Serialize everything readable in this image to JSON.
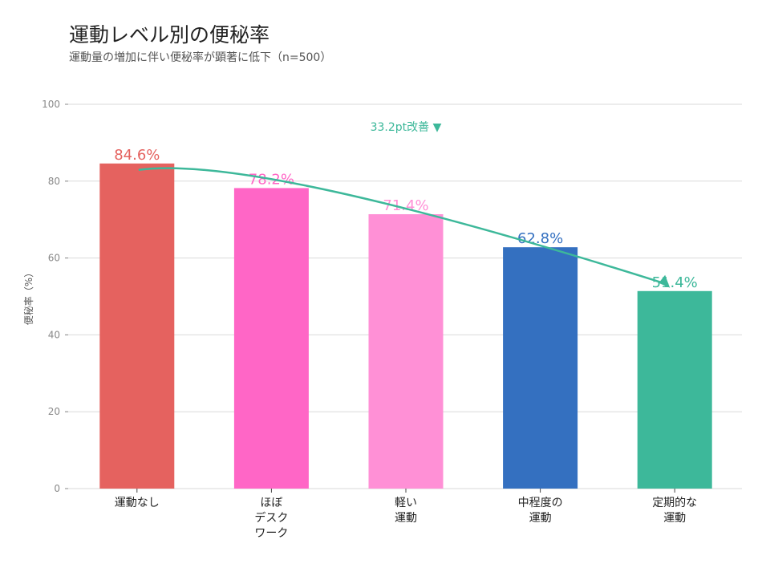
{
  "chart_data": {
    "type": "bar",
    "title": "運動レベル別の便秘率",
    "subtitle": "運動量の増加に伴い便秘率が顕著に低下（n=500）",
    "xlabel": "",
    "ylabel": "便秘率（%）",
    "ylim": [
      0,
      100
    ],
    "yticks": [
      0,
      20,
      40,
      60,
      80,
      100
    ],
    "grid": true,
    "categories": [
      [
        "運動なし"
      ],
      [
        "ほぼ",
        "デスク",
        "ワーク"
      ],
      [
        "軽い",
        "運動"
      ],
      [
        "中程度の",
        "運動"
      ],
      [
        "定期的な",
        "運動"
      ]
    ],
    "values": [
      84.6,
      78.2,
      71.4,
      62.8,
      51.4
    ],
    "data_labels": [
      "84.6%",
      "78.2%",
      "71.4%",
      "62.8%",
      "51.4%"
    ],
    "colors": [
      "#E5625F",
      "#FF66C6",
      "#FF90D6",
      "#3470C0",
      "#3DB89A"
    ],
    "annotation": {
      "text": "33.2pt改善 ▼",
      "color": "#3DB89A",
      "from": "運動なし",
      "to": "定期的な運動"
    }
  }
}
